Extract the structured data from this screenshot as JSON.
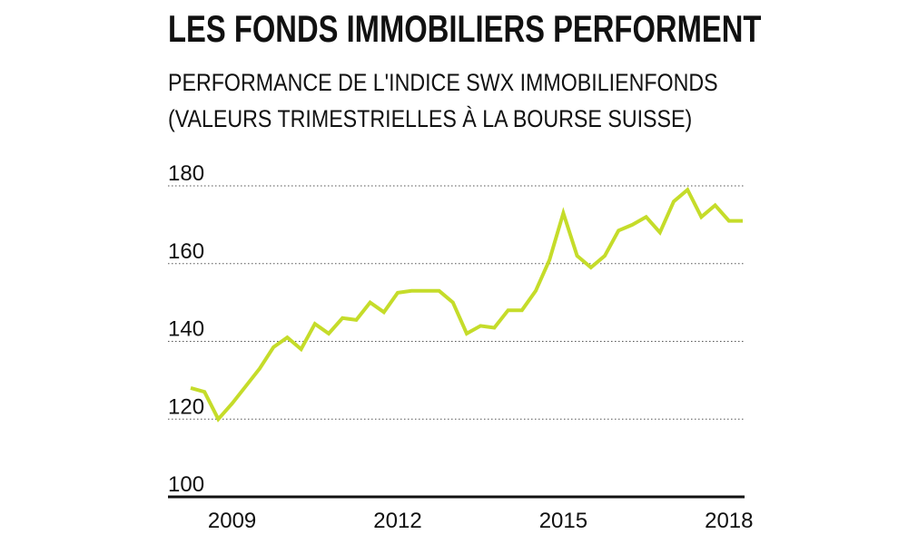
{
  "title": "LES FONDS IMMOBILIERS PERFORMENT",
  "subtitle_line1": "PERFORMANCE DE L'INDICE SWX IMMOBILIENFONDS",
  "subtitle_line2": "(VALEURS TRIMESTRIELLES À LA BOURSE SUISSE)",
  "colors": {
    "line": "#c5dc2a",
    "grid": "#555555",
    "axis": "#111111",
    "text": "#111111"
  },
  "chart_data": {
    "type": "line",
    "title": "LES FONDS IMMOBILIERS PERFORMENT",
    "subtitle": "PERFORMANCE DE L'INDICE SWX IMMOBILIENFONDS (VALEURS TRIMESTRIELLES À LA BOURSE SUISSE)",
    "xlabel": "",
    "ylabel": "",
    "x_ticks": [
      "2009",
      "2012",
      "2015",
      "2018"
    ],
    "y_ticks": [
      100,
      120,
      140,
      160,
      180
    ],
    "ylim": [
      100,
      180
    ],
    "xlim": [
      2008.25,
      2018.25
    ],
    "grid": "horizontal dotted",
    "legend": "none",
    "series": [
      {
        "x": [
          2008.25,
          2008.5,
          2008.75,
          2009.0,
          2009.25,
          2009.5,
          2009.75,
          2010.0,
          2010.25,
          2010.5,
          2010.75,
          2011.0,
          2011.25,
          2011.5,
          2011.75,
          2012.0,
          2012.25,
          2012.5,
          2012.75,
          2013.0,
          2013.25,
          2013.5,
          2013.75,
          2014.0,
          2014.25,
          2014.5,
          2014.75,
          2015.0,
          2015.25,
          2015.5,
          2015.75,
          2016.0,
          2016.25,
          2016.5,
          2016.75,
          2017.0,
          2017.25,
          2017.5,
          2017.75,
          2018.0,
          2018.25
        ],
        "values": [
          128,
          127,
          120,
          124,
          128.5,
          133,
          138.5,
          141,
          138,
          144.5,
          142,
          146,
          145.5,
          150,
          147.5,
          152.5,
          153,
          153,
          153,
          150,
          142,
          144,
          143.5,
          148,
          148,
          153,
          161,
          173,
          162,
          159,
          162,
          168.5,
          170,
          172,
          168,
          176,
          179,
          172,
          175,
          171,
          171
        ]
      }
    ]
  }
}
